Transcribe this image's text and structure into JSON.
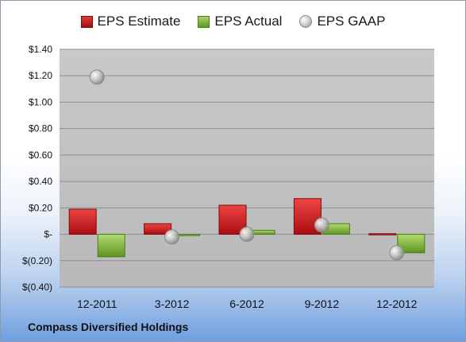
{
  "company": "Compass Diversified Holdings",
  "colors": {
    "estimate": "#c8161d",
    "actual": "#7cb342",
    "gaap": "#b0b0b0"
  },
  "chart_data": {
    "type": "bar",
    "categories": [
      "12-2011",
      "3-2012",
      "6-2012",
      "9-2012",
      "12-2012"
    ],
    "series": [
      {
        "name": "EPS Estimate",
        "values": [
          0.19,
          0.08,
          0.22,
          0.27,
          0.0
        ]
      },
      {
        "name": "EPS Actual",
        "values": [
          -0.17,
          -0.01,
          0.03,
          0.08,
          -0.14
        ]
      },
      {
        "name": "EPS GAAP",
        "type": "scatter",
        "values": [
          1.19,
          -0.02,
          0.0,
          0.07,
          -0.14
        ]
      }
    ],
    "ylim": [
      -0.4,
      1.4
    ],
    "yticks": [
      -0.4,
      -0.2,
      0.0,
      0.2,
      0.4,
      0.6,
      0.8,
      1.0,
      1.2,
      1.4
    ],
    "ytick_labels": [
      "$(0.40)",
      "$(0.20)",
      "$-",
      "$0.20",
      "$0.40",
      "$0.60",
      "$0.80",
      "$1.00",
      "$1.20",
      "$1.40"
    ],
    "grid": true,
    "legend": "top"
  }
}
